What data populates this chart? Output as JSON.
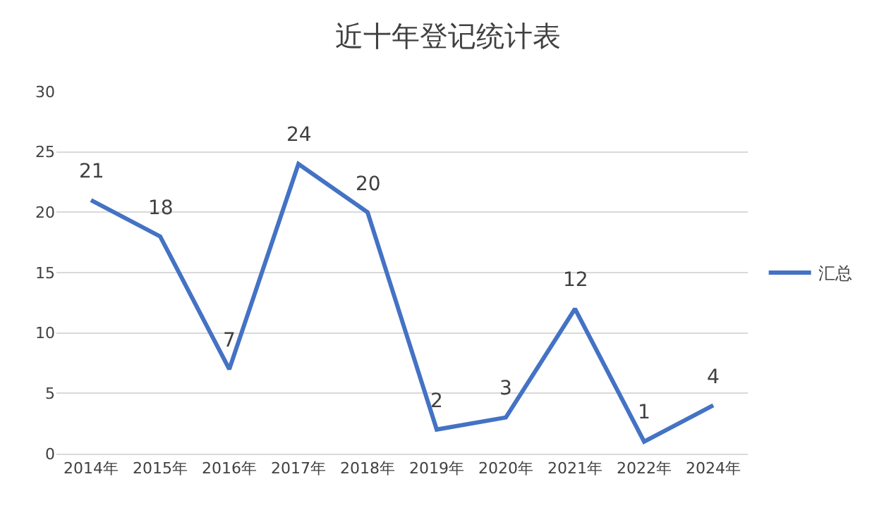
{
  "chart_data": {
    "type": "line",
    "title": "近十年登记统计表",
    "categories": [
      "2014年",
      "2015年",
      "2016年",
      "2017年",
      "2018年",
      "2019年",
      "2020年",
      "2021年",
      "2022年",
      "2024年"
    ],
    "series": [
      {
        "name": "汇总",
        "color": "#4472c4",
        "values": [
          21,
          18,
          7,
          24,
          20,
          2,
          3,
          12,
          1,
          4
        ]
      }
    ],
    "ylim": [
      0,
      30
    ],
    "yticks": [
      0,
      5,
      10,
      15,
      20,
      25,
      30
    ],
    "grid": "y",
    "legend": "right",
    "data_labels": true,
    "marker": "none",
    "line_style": "solid"
  }
}
